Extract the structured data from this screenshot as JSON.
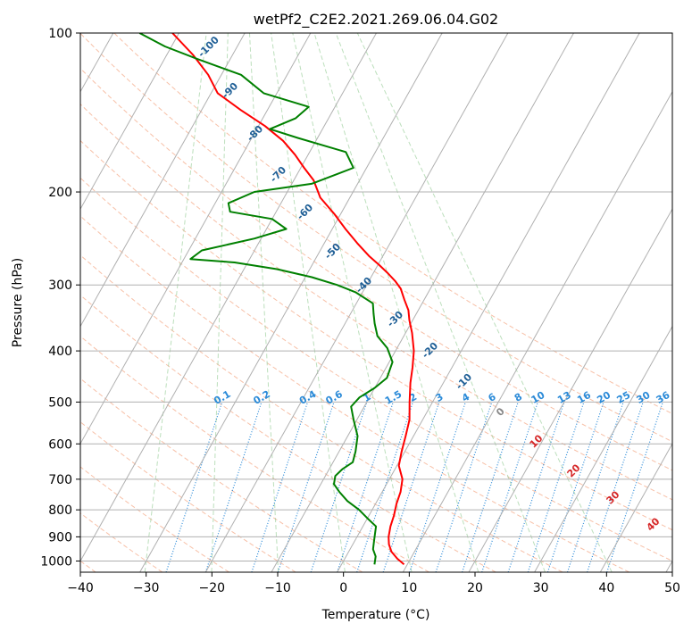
{
  "chart_data": {
    "type": "line",
    "title": "wetPf2_C2E2.2021.269.06.04.G02",
    "xlabel": "Temperature (°C)",
    "ylabel": "Pressure (hPa)",
    "xlim": [
      -40,
      50
    ],
    "ylim": [
      1050,
      100
    ],
    "x_ticks": [
      -40,
      -30,
      -20,
      -10,
      0,
      10,
      20,
      30,
      40,
      50
    ],
    "x_tick_labels": [
      "−40",
      "−30",
      "−20",
      "−10",
      "0",
      "10",
      "20",
      "30",
      "40",
      "50"
    ],
    "y_ticks": [
      1000,
      900,
      800,
      700,
      600,
      500,
      400,
      300,
      200,
      100
    ],
    "y_tick_labels": [
      "1000",
      "900",
      "800",
      "700",
      "600",
      "500",
      "400",
      "300",
      "200",
      "100"
    ],
    "isotherm_skew_deg_per_decade": 45,
    "dry_adiabat_labels": [
      "-100",
      "-90",
      "-80",
      "-70",
      "-60",
      "-50",
      "-40",
      "-30",
      "-20",
      "-10",
      "0",
      "10",
      "20",
      "30",
      "40"
    ],
    "mixing_ratio_labels": [
      "0.1",
      "0.2",
      "0.4",
      "0.6",
      "1",
      "1.5",
      "2",
      "3",
      "4",
      "6",
      "8",
      "10",
      "13",
      "16",
      "20",
      "25",
      "30",
      "36"
    ],
    "series": [
      {
        "name": "Temperature",
        "color": "#ff0000",
        "points": [
          {
            "p": 1015,
            "t": 9.5
          },
          {
            "p": 990,
            "t": 8.0
          },
          {
            "p": 960,
            "t": 6.5
          },
          {
            "p": 930,
            "t": 5.5
          },
          {
            "p": 900,
            "t": 4.8
          },
          {
            "p": 860,
            "t": 4.2
          },
          {
            "p": 820,
            "t": 3.8
          },
          {
            "p": 780,
            "t": 3.2
          },
          {
            "p": 740,
            "t": 2.8
          },
          {
            "p": 700,
            "t": 2.0
          },
          {
            "p": 660,
            "t": 0.3
          },
          {
            "p": 620,
            "t": -0.5
          },
          {
            "p": 580,
            "t": -1.2
          },
          {
            "p": 540,
            "t": -2.0
          },
          {
            "p": 500,
            "t": -3.5
          },
          {
            "p": 460,
            "t": -5.0
          },
          {
            "p": 430,
            "t": -6.0
          },
          {
            "p": 400,
            "t": -7.2
          },
          {
            "p": 370,
            "t": -9.0
          },
          {
            "p": 350,
            "t": -10.5
          },
          {
            "p": 335,
            "t": -11.5
          },
          {
            "p": 320,
            "t": -13.0
          },
          {
            "p": 305,
            "t": -14.5
          },
          {
            "p": 295,
            "t": -16.0
          },
          {
            "p": 285,
            "t": -17.8
          },
          {
            "p": 275,
            "t": -19.8
          },
          {
            "p": 265,
            "t": -22.0
          },
          {
            "p": 250,
            "t": -25.0
          },
          {
            "p": 235,
            "t": -28.0
          },
          {
            "p": 220,
            "t": -31.0
          },
          {
            "p": 205,
            "t": -34.5
          },
          {
            "p": 190,
            "t": -37.0
          },
          {
            "p": 180,
            "t": -39.5
          },
          {
            "p": 170,
            "t": -42.0
          },
          {
            "p": 160,
            "t": -45.0
          },
          {
            "p": 150,
            "t": -49.0
          },
          {
            "p": 140,
            "t": -54.0
          },
          {
            "p": 130,
            "t": -59.0
          },
          {
            "p": 120,
            "t": -62.0
          },
          {
            "p": 110,
            "t": -66.0
          },
          {
            "p": 100,
            "t": -71.0
          }
        ]
      },
      {
        "name": "Dewpoint",
        "color": "#008000",
        "points": [
          {
            "p": 1015,
            "t": 5.0
          },
          {
            "p": 980,
            "t": 4.5
          },
          {
            "p": 950,
            "t": 3.5
          },
          {
            "p": 920,
            "t": 3.0
          },
          {
            "p": 890,
            "t": 2.5
          },
          {
            "p": 860,
            "t": 2.0
          },
          {
            "p": 830,
            "t": 0.0
          },
          {
            "p": 800,
            "t": -2.0
          },
          {
            "p": 770,
            "t": -4.5
          },
          {
            "p": 740,
            "t": -6.5
          },
          {
            "p": 715,
            "t": -8.0
          },
          {
            "p": 690,
            "t": -8.5
          },
          {
            "p": 670,
            "t": -8.0
          },
          {
            "p": 650,
            "t": -7.0
          },
          {
            "p": 620,
            "t": -7.5
          },
          {
            "p": 580,
            "t": -8.5
          },
          {
            "p": 540,
            "t": -10.5
          },
          {
            "p": 510,
            "t": -12.0
          },
          {
            "p": 490,
            "t": -11.5
          },
          {
            "p": 470,
            "t": -10.0
          },
          {
            "p": 450,
            "t": -9.0
          },
          {
            "p": 420,
            "t": -9.5
          },
          {
            "p": 395,
            "t": -11.5
          },
          {
            "p": 375,
            "t": -14.0
          },
          {
            "p": 355,
            "t": -15.5
          },
          {
            "p": 340,
            "t": -16.5
          },
          {
            "p": 325,
            "t": -17.5
          },
          {
            "p": 310,
            "t": -21.0
          },
          {
            "p": 300,
            "t": -24.5
          },
          {
            "p": 290,
            "t": -29.0
          },
          {
            "p": 280,
            "t": -35.0
          },
          {
            "p": 272,
            "t": -42.0
          },
          {
            "p": 268,
            "t": -49.0
          },
          {
            "p": 258,
            "t": -48.0
          },
          {
            "p": 245,
            "t": -41.0
          },
          {
            "p": 235,
            "t": -37.0
          },
          {
            "p": 225,
            "t": -40.0
          },
          {
            "p": 218,
            "t": -47.0
          },
          {
            "p": 210,
            "t": -48.0
          },
          {
            "p": 200,
            "t": -45.0
          },
          {
            "p": 193,
            "t": -37.0
          },
          {
            "p": 180,
            "t": -32.0
          },
          {
            "p": 168,
            "t": -34.5
          },
          {
            "p": 158,
            "t": -43.0
          },
          {
            "p": 152,
            "t": -48.0
          },
          {
            "p": 145,
            "t": -45.0
          },
          {
            "p": 138,
            "t": -44.0
          },
          {
            "p": 130,
            "t": -52.0
          },
          {
            "p": 120,
            "t": -57.0
          },
          {
            "p": 112,
            "t": -65.0
          },
          {
            "p": 106,
            "t": -71.0
          },
          {
            "p": 100,
            "t": -76.0
          }
        ]
      }
    ]
  }
}
